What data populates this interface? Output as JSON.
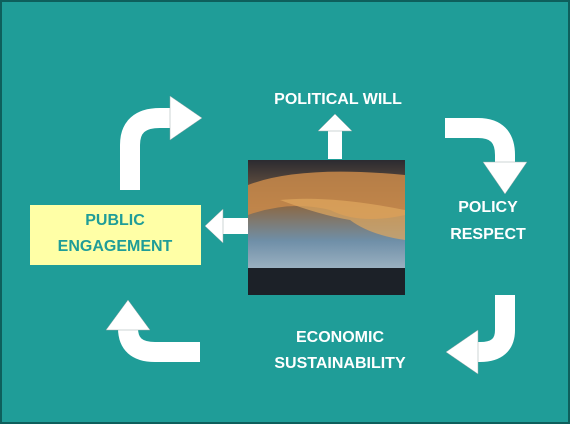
{
  "nodes": [
    {
      "lines": [
        "POLITICAL WILL"
      ]
    },
    {
      "lines": [
        "POLICY",
        "RESPECT"
      ]
    },
    {
      "lines": [
        "ECONOMIC",
        "SUSTAINABILITY"
      ]
    },
    {
      "lines": [
        "PUBLIC",
        "ENGAGEMENT"
      ]
    }
  ]
}
